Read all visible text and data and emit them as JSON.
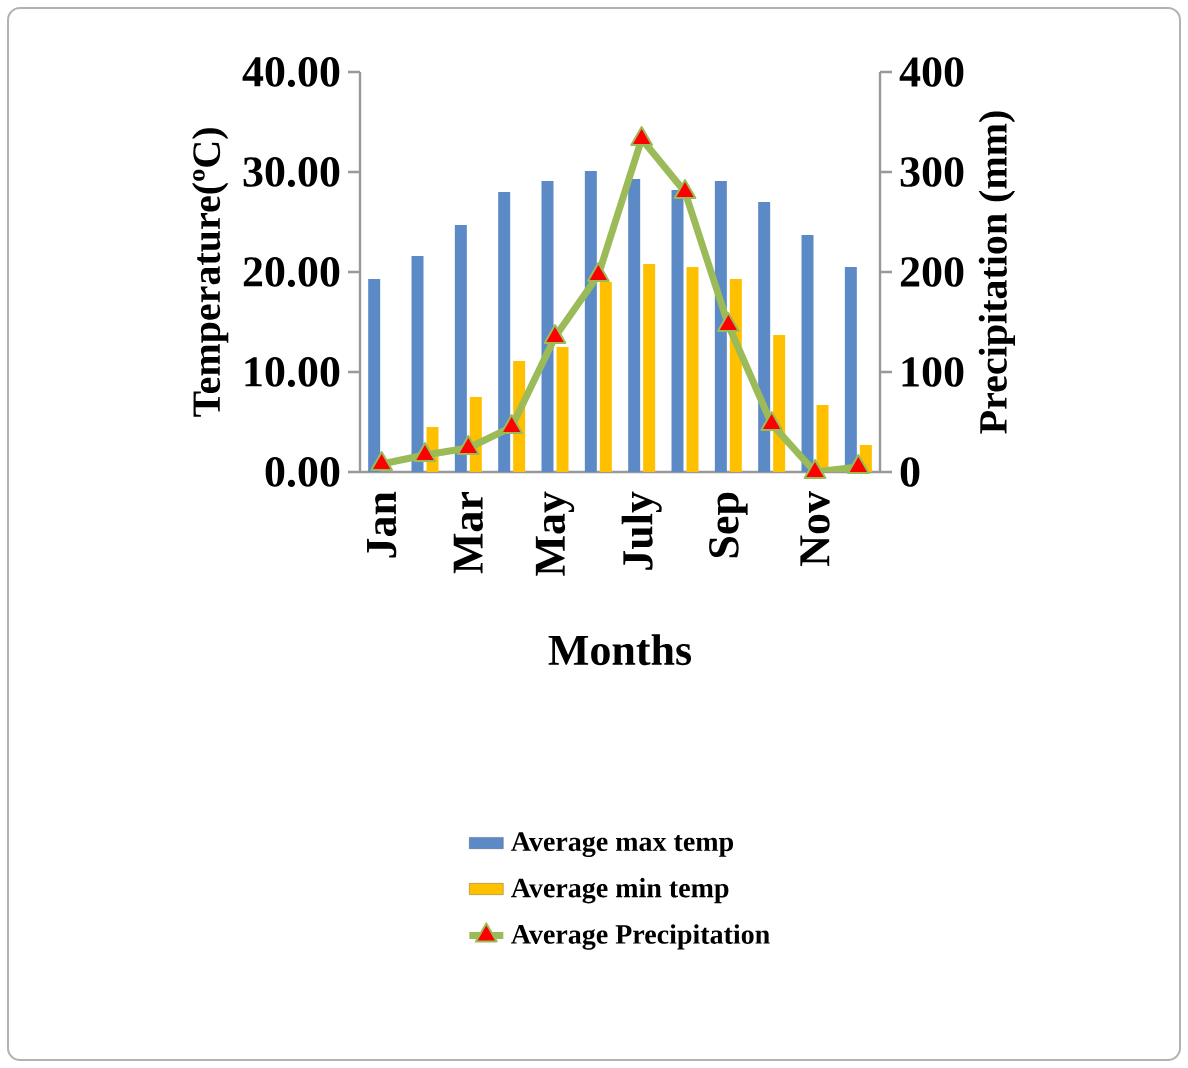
{
  "chart_data": {
    "type": "bar",
    "xlabel": "Months",
    "ylabel": "Temperature(ºC)",
    "y2label": "Precipitation (mm)",
    "categories": [
      "Jan",
      null,
      "Mar",
      null,
      "May",
      null,
      "July",
      null,
      "Sep",
      null,
      "Nov",
      null
    ],
    "series": [
      {
        "name": "Average max temp",
        "color": "#5b8ac6",
        "values": [
          19.3,
          21.6,
          24.7,
          28.0,
          29.1,
          30.1,
          29.3,
          28.2,
          29.1,
          27.0,
          23.7,
          20.5
        ]
      },
      {
        "name": "Average min temp",
        "color": "#ffc000",
        "values": [
          null,
          4.5,
          7.5,
          11.1,
          12.5,
          19.0,
          20.8,
          20.5,
          19.3,
          13.7,
          6.7,
          2.7
        ]
      },
      {
        "name": "Average Precipitation",
        "type": "line",
        "axis": "y2",
        "color": "#9bbb59",
        "marker": "triangle",
        "values": [
          8,
          17,
          24,
          45,
          135,
          197,
          333,
          280,
          147,
          48,
          0,
          5
        ]
      }
    ],
    "ylim": [
      0,
      40
    ],
    "yticks": [
      {
        "value": 0,
        "label": "0.00"
      },
      {
        "value": 10,
        "label": "10.00"
      },
      {
        "value": 20,
        "label": "20.00"
      },
      {
        "value": 30,
        "label": "30.00"
      },
      {
        "value": 40,
        "label": "40.00"
      }
    ],
    "y2lim": [
      0,
      400
    ],
    "y2ticks": [
      0,
      100,
      200,
      300,
      400
    ],
    "grid": false,
    "legend": "bottom"
  }
}
